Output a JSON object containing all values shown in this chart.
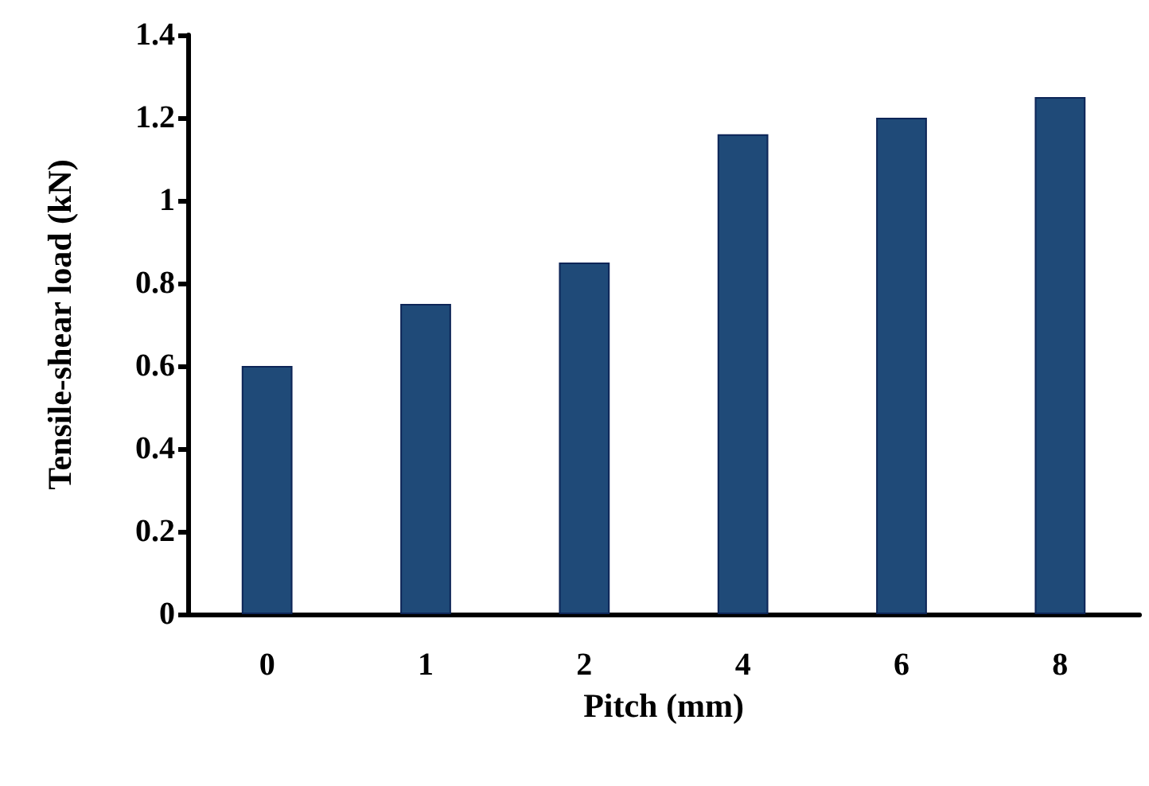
{
  "chart_data": {
    "type": "bar",
    "xlabel": "Pitch (mm)",
    "ylabel": "Tensile-shear load (kN)",
    "categories": [
      "0",
      "1",
      "2",
      "4",
      "6",
      "8"
    ],
    "values": [
      0.6,
      0.75,
      0.85,
      1.16,
      1.2,
      1.25
    ],
    "color": "#1f4a78",
    "ylim": [
      0,
      1.4
    ],
    "yticks": [
      0,
      0.2,
      0.4,
      0.6,
      0.8,
      1,
      1.2,
      1.4
    ],
    "grid": false
  }
}
